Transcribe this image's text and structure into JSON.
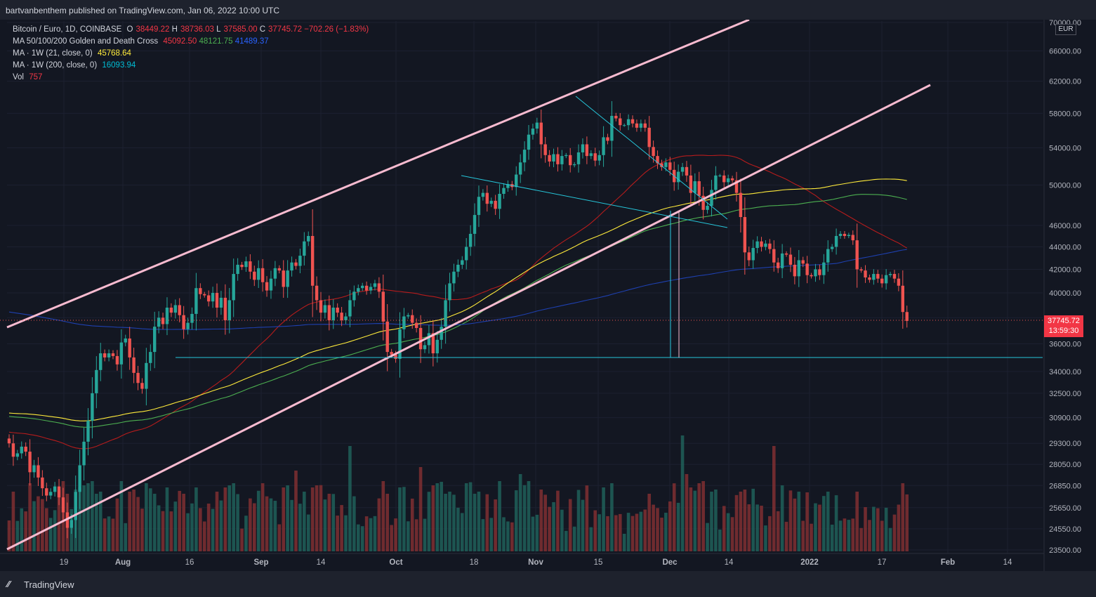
{
  "header": {
    "published": "bartvanbenthem published on TradingView.com, Jan 06, 2022 10:00 UTC"
  },
  "footer": {
    "brand": "TradingView",
    "logo": "tv-logo"
  },
  "legend": {
    "symbol": "Bitcoin / Euro, 1D, COINBASE",
    "ohlc": {
      "o_label": "O",
      "o": "38449.22",
      "h_label": "H",
      "h": "38736.03",
      "l_label": "L",
      "l": "37585.00",
      "c_label": "C",
      "c": "37745.72",
      "change": "−702.26 (−1.83%)"
    },
    "ma_cross": {
      "label": "MA 50/100/200 Golden and Death Cross",
      "v50": "45092.50",
      "v100": "48121.75",
      "v200": "41489.37"
    },
    "ma21w": {
      "label": "MA · 1W (21, close, 0)",
      "value": "45768.64"
    },
    "ma200w": {
      "label": "MA · 1W (200, close, 0)",
      "value": "16093.94"
    },
    "vol": {
      "label": "Vol",
      "value": "757"
    }
  },
  "currency": "EUR",
  "last_price": {
    "value": "37745.72",
    "countdown": "13:59:30"
  },
  "colors": {
    "up": "#26a69a",
    "down": "#ef5350",
    "channel": "#f8bbd0",
    "trend": "#26c6da",
    "ma50": "#b71c1c",
    "ma100": "#4caf50",
    "ma200": "#1e40af",
    "ma21w": "#ffeb3b"
  },
  "chart_data": {
    "type": "candlestick",
    "y_axis": {
      "scale": "log",
      "ticks": [
        "70000.00",
        "66000.00",
        "62000.00",
        "58000.00",
        "54000.00",
        "50000.00",
        "46000.00",
        "44000.00",
        "42000.00",
        "40000.00",
        "38000.00",
        "36000.00",
        "34000.00",
        "32500.00",
        "30900.00",
        "29300.00",
        "28050.00",
        "26850.00",
        "25650.00",
        "24550.00",
        "23500.00"
      ],
      "range": [
        23100,
        71000
      ]
    },
    "x_axis": {
      "ticks": [
        "19",
        "Aug",
        "16",
        "Sep",
        "14",
        "Oct",
        "18",
        "Nov",
        "15",
        "Dec",
        "14",
        "2022",
        "17",
        "Feb",
        "14"
      ],
      "bold_ticks": [
        "Aug",
        "Sep",
        "Oct",
        "Nov",
        "Dec",
        "2022",
        "Feb"
      ]
    },
    "close": [
      29300,
      28500,
      28700,
      29100,
      28800,
      27600,
      28000,
      27300,
      26700,
      26300,
      26500,
      26800,
      26200,
      25400,
      24600,
      25000,
      26500,
      28000,
      29400,
      30700,
      32500,
      34100,
      35300,
      35000,
      35300,
      35100,
      34500,
      36100,
      36400,
      35000,
      33900,
      33200,
      32800,
      34600,
      35400,
      37300,
      38000,
      37500,
      38800,
      38400,
      39000,
      38200,
      37100,
      37600,
      38300,
      40400,
      39900,
      39800,
      39300,
      40000,
      38800,
      39600,
      37800,
      39400,
      41600,
      42400,
      42200,
      42700,
      41800,
      41100,
      42100,
      40900,
      40200,
      41200,
      42100,
      41900,
      40500,
      41900,
      42600,
      42300,
      43200,
      44500,
      45000,
      40600,
      39400,
      38400,
      39000,
      37800,
      38800,
      38400,
      37800,
      38100,
      39400,
      40100,
      40400,
      40600,
      40200,
      40500,
      40800,
      40100,
      37700,
      35400,
      35200,
      34900,
      37100,
      38100,
      38200,
      37600,
      37200,
      35600,
      35900,
      36800,
      35300,
      36300,
      37300,
      39400,
      40800,
      41800,
      42400,
      42800,
      44000,
      45200,
      47000,
      48800,
      49200,
      48100,
      48400,
      47600,
      49100,
      49700,
      50100,
      49800,
      51100,
      52400,
      53800,
      55500,
      56200,
      56900,
      54400,
      53200,
      52500,
      53300,
      52200,
      53100,
      53200,
      52100,
      52200,
      53500,
      54400,
      53100,
      53400,
      52600,
      53200,
      55200,
      54800,
      57700,
      57400,
      56600,
      56600,
      57300,
      56800,
      56300,
      56800,
      56300,
      54100,
      53100,
      52300,
      51900,
      52400,
      51600,
      50300,
      51400,
      51900,
      51000,
      49200,
      50400,
      48900,
      47500,
      47900,
      49500,
      51000,
      51000,
      50300,
      50700,
      50500,
      49200,
      46800,
      43500,
      42800,
      43900,
      44500,
      44000,
      44300,
      43800,
      42600,
      42100,
      43400,
      43300,
      42400,
      41400,
      42800,
      42500,
      41500,
      41400,
      42000,
      41500,
      42600,
      43800,
      44000,
      45000,
      45200,
      45000,
      45100,
      44600,
      42000,
      41900,
      41300,
      41100,
      41600,
      41200,
      40800,
      41500,
      41600,
      41200,
      40600,
      38450,
      37745.72
    ]
  }
}
